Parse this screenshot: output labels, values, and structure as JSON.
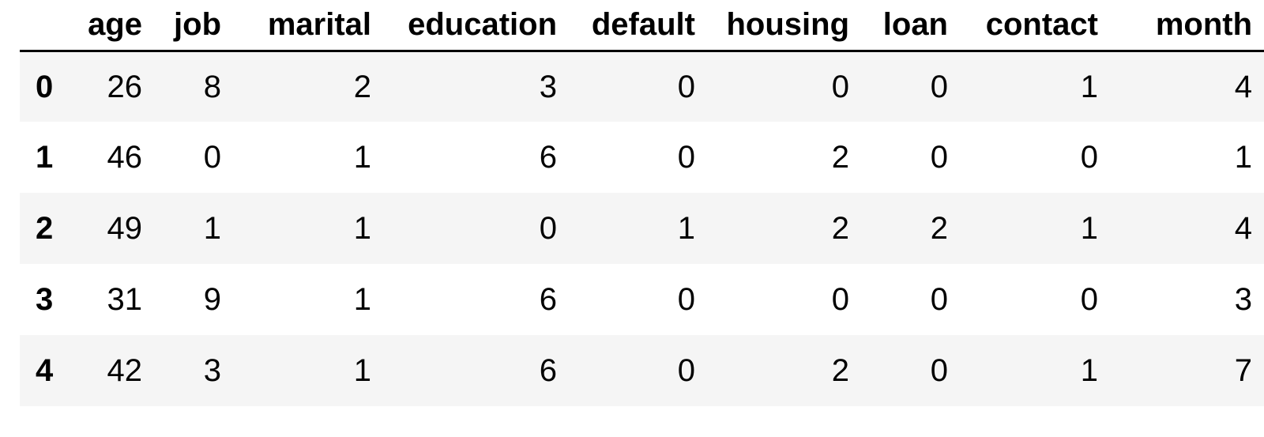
{
  "table": {
    "columns": [
      "",
      "age",
      "job",
      "marital",
      "education",
      "default",
      "housing",
      "loan",
      "contact",
      "month"
    ],
    "rows": [
      {
        "index": "0",
        "cells": [
          "26",
          "8",
          "2",
          "3",
          "0",
          "0",
          "0",
          "1",
          "4"
        ]
      },
      {
        "index": "1",
        "cells": [
          "46",
          "0",
          "1",
          "6",
          "0",
          "2",
          "0",
          "0",
          "1"
        ]
      },
      {
        "index": "2",
        "cells": [
          "49",
          "1",
          "1",
          "0",
          "1",
          "2",
          "2",
          "1",
          "4"
        ]
      },
      {
        "index": "3",
        "cells": [
          "31",
          "9",
          "1",
          "6",
          "0",
          "0",
          "0",
          "0",
          "3"
        ]
      },
      {
        "index": "4",
        "cells": [
          "42",
          "3",
          "1",
          "6",
          "0",
          "2",
          "0",
          "1",
          "7"
        ]
      }
    ]
  }
}
